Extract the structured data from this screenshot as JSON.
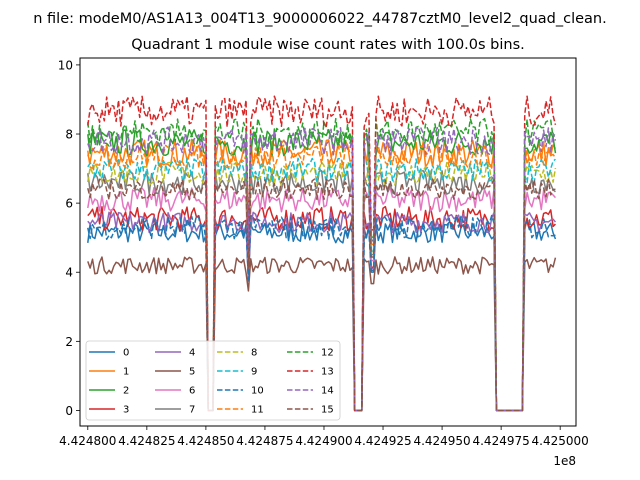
{
  "chart_data": {
    "type": "line",
    "suptitle": "n file: modeM0/AS1A13_004T13_9000006022_44787cztM0_level2_quad_clean.",
    "title": "Quadrant 1 module wise count rates with 100.0s bins.",
    "xlabel": "",
    "ylabel": "",
    "x_offset_label": "1e8",
    "xlim": [
      4.4247967,
      4.4250067
    ],
    "ylim": [
      -0.45,
      10.2
    ],
    "x_ticks": [
      4.4248,
      4.424825,
      4.42485,
      4.424875,
      4.4249,
      4.424925,
      4.42495,
      4.424975,
      4.425
    ],
    "x_tick_labels": [
      "4.424800",
      "4.424825",
      "4.424850",
      "4.424875",
      "4.424900",
      "4.424925",
      "4.424950",
      "4.424975",
      "4.425000"
    ],
    "y_ticks": [
      0,
      2,
      4,
      6,
      8,
      10
    ],
    "y_tick_labels": [
      "0",
      "2",
      "4",
      "6",
      "8",
      "10"
    ],
    "x_start": 4.4248,
    "x_end": 4.4249985,
    "bin_width": 1e-06,
    "gaps": [
      {
        "from": 4.4248505,
        "to": 4.4248535,
        "floor": 0.0
      },
      {
        "from": 4.424913,
        "to": 4.424917,
        "floor": 0.0
      },
      {
        "from": 4.4249725,
        "to": 4.4249845,
        "floor": 0.0
      }
    ],
    "dips": [
      {
        "x": 4.424868,
        "depth": 0.3
      },
      {
        "x": 4.4249205,
        "depth": 0.35
      }
    ],
    "grid": false,
    "legend_position": "lower-left",
    "legend_columns": 4,
    "series": [
      {
        "name": "0",
        "level": 5.15,
        "amp": 0.3,
        "color": "#1f77b4",
        "dash": "solid"
      },
      {
        "name": "1",
        "level": 7.45,
        "amp": 0.4,
        "color": "#ff7f0e",
        "dash": "solid"
      },
      {
        "name": "2",
        "level": 7.75,
        "amp": 0.4,
        "color": "#2ca02c",
        "dash": "solid"
      },
      {
        "name": "3",
        "level": 5.55,
        "amp": 0.35,
        "color": "#d62728",
        "dash": "solid"
      },
      {
        "name": "4",
        "level": 5.45,
        "amp": 0.3,
        "color": "#9467bd",
        "dash": "solid"
      },
      {
        "name": "5",
        "level": 4.2,
        "amp": 0.25,
        "color": "#8c564b",
        "dash": "solid"
      },
      {
        "name": "6",
        "level": 6.1,
        "amp": 0.35,
        "color": "#e377c2",
        "dash": "solid"
      },
      {
        "name": "7",
        "level": 6.6,
        "amp": 0.35,
        "color": "#7f7f7f",
        "dash": "solid"
      },
      {
        "name": "8",
        "level": 6.85,
        "amp": 0.35,
        "color": "#bcbd22",
        "dash": "dashed"
      },
      {
        "name": "9",
        "level": 6.95,
        "amp": 0.35,
        "color": "#17becf",
        "dash": "dashed"
      },
      {
        "name": "10",
        "level": 5.3,
        "amp": 0.35,
        "color": "#1f77b4",
        "dash": "dashed"
      },
      {
        "name": "11",
        "level": 7.35,
        "amp": 0.35,
        "color": "#ff7f0e",
        "dash": "dashed"
      },
      {
        "name": "12",
        "level": 8.05,
        "amp": 0.4,
        "color": "#2ca02c",
        "dash": "dashed"
      },
      {
        "name": "13",
        "level": 8.65,
        "amp": 0.45,
        "color": "#d62728",
        "dash": "dashed"
      },
      {
        "name": "14",
        "level": 7.8,
        "amp": 0.4,
        "color": "#9467bd",
        "dash": "dashed"
      },
      {
        "name": "15",
        "level": 6.4,
        "amp": 0.3,
        "color": "#8c564b",
        "dash": "dashed"
      }
    ]
  }
}
